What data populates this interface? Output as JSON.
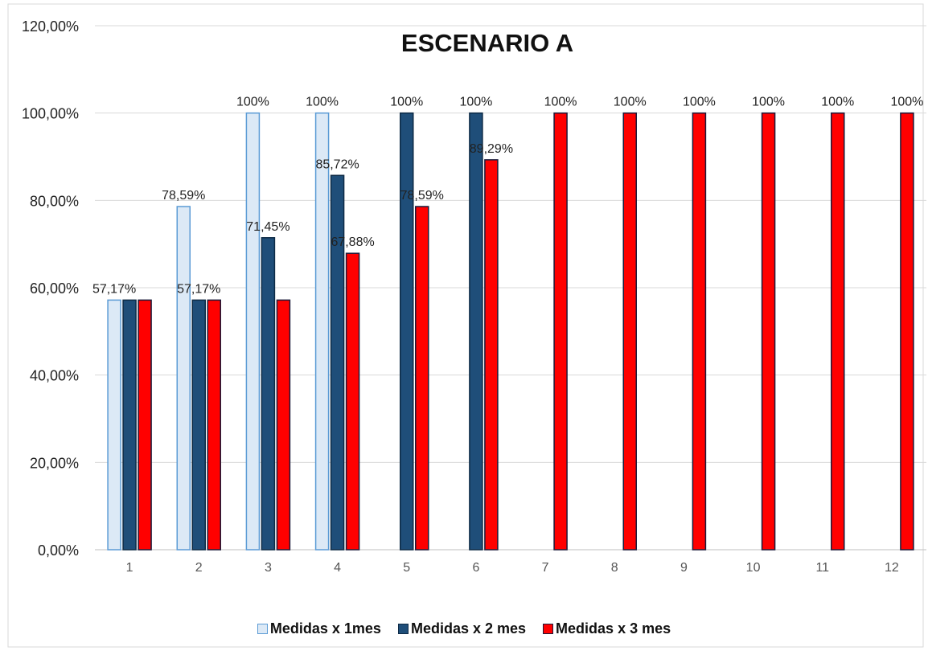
{
  "chart_data": {
    "type": "bar",
    "title": "ESCENARIO A",
    "xlabel": "",
    "ylabel": "",
    "ylim": [
      0,
      120
    ],
    "y_ticks": [
      "0,00%",
      "20,00%",
      "40,00%",
      "60,00%",
      "80,00%",
      "100,00%",
      "120,00%"
    ],
    "categories": [
      "1",
      "2",
      "3",
      "4",
      "5",
      "6",
      "7",
      "8",
      "9",
      "10",
      "11",
      "12"
    ],
    "grid": true,
    "legend_position": "bottom",
    "series": [
      {
        "name": "Medidas x 1mes",
        "color": "#dce9f6",
        "stroke": "#5b9bd5",
        "values": [
          57.17,
          78.59,
          100,
          100,
          null,
          null,
          null,
          null,
          null,
          null,
          null,
          null
        ],
        "labels": [
          "57,17%",
          "78,59%",
          "100%",
          "100%",
          "",
          "",
          "",
          "",
          "",
          "",
          "",
          ""
        ]
      },
      {
        "name": "Medidas x 2 mes",
        "color": "#1f4e79",
        "stroke": "#0d2a45",
        "values": [
          57.17,
          57.17,
          71.45,
          85.72,
          100,
          100,
          null,
          null,
          null,
          null,
          null,
          null
        ],
        "labels": [
          "",
          "57,17%",
          "71,45%",
          "85,72%",
          "100%",
          "100%",
          "",
          "",
          "",
          "",
          "",
          ""
        ]
      },
      {
        "name": "Medidas x 3 mes",
        "color": "#ff0000",
        "stroke": "#1a1a3a",
        "values": [
          57.17,
          57.17,
          57.17,
          67.88,
          78.59,
          89.29,
          100,
          100,
          100,
          100,
          100,
          100
        ],
        "labels": [
          "",
          "",
          "",
          "67,88%",
          "78,59%",
          "89,29%",
          "100%",
          "100%",
          "100%",
          "100%",
          "100%",
          "100%"
        ]
      }
    ]
  }
}
